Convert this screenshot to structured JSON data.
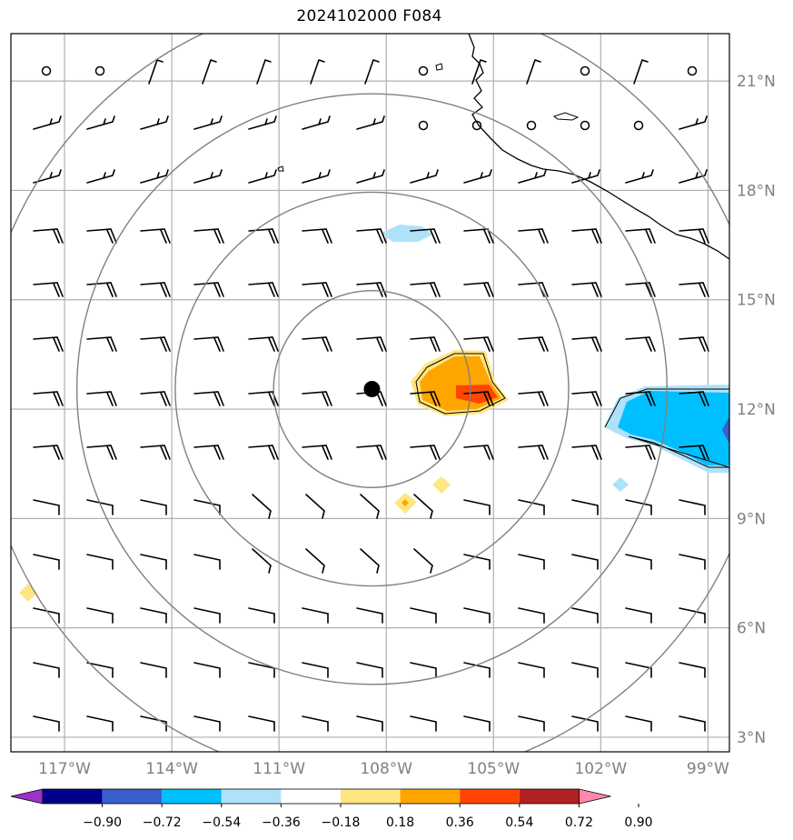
{
  "title": "2024102000 F084",
  "map": {
    "lat_range": [
      2.6,
      22.3
    ],
    "lon_range": [
      -118.5,
      -98.4
    ],
    "center_marker": {
      "lat": 12.55,
      "lon": -108.4
    },
    "range_rings_deg": [
      2.7,
      5.4,
      8.1,
      10.8
    ],
    "lat_ticks": [
      {
        "lat": 21,
        "label": "21°N"
      },
      {
        "lat": 18,
        "label": "18°N"
      },
      {
        "lat": 15,
        "label": "15°N"
      },
      {
        "lat": 12,
        "label": "12°N"
      },
      {
        "lat": 9,
        "label": "9°N"
      },
      {
        "lat": 6,
        "label": "6°N"
      },
      {
        "lat": 3,
        "label": "3°N"
      }
    ],
    "lon_ticks": [
      {
        "lon": -117,
        "label": "117°W"
      },
      {
        "lon": -114,
        "label": "114°W"
      },
      {
        "lon": -111,
        "label": "111°W"
      },
      {
        "lon": -108,
        "label": "108°W"
      },
      {
        "lon": -105,
        "label": "105°W"
      },
      {
        "lon": -102,
        "label": "102°W"
      },
      {
        "lon": -99,
        "label": "99°W"
      }
    ],
    "grid": true
  },
  "colorbar": {
    "ticks": [
      "−0.90",
      "−0.72",
      "−0.54",
      "−0.36",
      "−0.18",
      "0.18",
      "0.36",
      "0.54",
      "0.72",
      "0.90"
    ],
    "colors": [
      "#9933cc",
      "#00008b",
      "#3a5fcd",
      "#00bfff",
      "#aee2fa",
      "#ffffff",
      "#ffe680",
      "#ffa500",
      "#ff4500",
      "#b22222",
      "#ff88aa"
    ]
  },
  "colors": {
    "grid": "#b0b0b0",
    "rings": "#808080",
    "coast": "#000000"
  }
}
